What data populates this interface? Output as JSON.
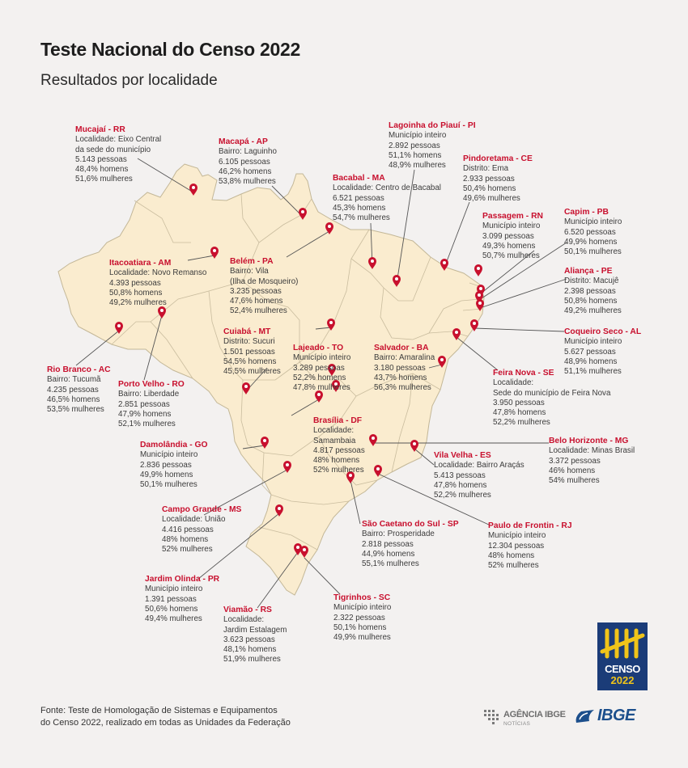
{
  "header": {
    "title": "Teste Nacional do Censo 2022",
    "subtitle": "Resultados por localidade"
  },
  "colors": {
    "land": "#faeccf",
    "border": "#c8bc9f",
    "pin": "#c8102e",
    "leader": "#555555",
    "background": "#f3f1f0"
  },
  "icons": {
    "pin": "map-pin-icon"
  },
  "locations": [
    {
      "name": "Mucajaí - RR",
      "lines": [
        "Localidade: Eixo Central",
        "da sede do município",
        "5.143 pessoas",
        "48,4% homens",
        "51,6% mulheres"
      ]
    },
    {
      "name": "Macapá - AP",
      "lines": [
        "Bairro: Laguinho",
        "6.105 pessoas",
        "46,2% homens",
        "53,8% mulheres"
      ]
    },
    {
      "name": "Lagoinha do Piauí - PI",
      "lines": [
        "Município inteiro",
        "2.892 pessoas",
        "51,1% homens",
        "48,9% mulheres"
      ]
    },
    {
      "name": "Pindoretama - CE",
      "lines": [
        "Distrito: Ema",
        "2.933 pessoas",
        "50,4% homens",
        "49,6% mulheres"
      ]
    },
    {
      "name": "Bacabal - MA",
      "lines": [
        "Localidade: Centro de Bacabal",
        "6.521 pessoas",
        "45,3% homens",
        "54,7% mulheres"
      ]
    },
    {
      "name": "Passagem - RN",
      "lines": [
        "Município inteiro",
        "3.099 pessoas",
        "49,3% homens",
        "50,7% mulheres"
      ]
    },
    {
      "name": "Capim - PB",
      "lines": [
        "Município inteiro",
        "6.520 pessoas",
        "49,9% homens",
        "50,1% mulheres"
      ]
    },
    {
      "name": "Itacoatiara - AM",
      "lines": [
        "Localidade: Novo Remanso",
        "4.393 pessoas",
        "50,8% homens",
        "49,2% mulheres"
      ]
    },
    {
      "name": "Belém - PA",
      "lines": [
        "Bairro: Vila",
        "(Ilha de Mosqueiro)",
        "3.235 pessoas",
        "47,6% homens",
        "52,4% mulheres"
      ]
    },
    {
      "name": "Aliança - PE",
      "lines": [
        "Distrito: Macujê",
        "2.398 pessoas",
        "50,8% homens",
        "49,2% mulheres"
      ]
    },
    {
      "name": "Coqueiro Seco - AL",
      "lines": [
        "Município inteiro",
        "5.627 pessoas",
        "48,9% homens",
        "51,1% mulheres"
      ]
    },
    {
      "name": "Cuiabá - MT",
      "lines": [
        "Distrito: Sucuri",
        "1.501 pessoas",
        "54,5% homens",
        "45,5% mulheres"
      ]
    },
    {
      "name": "Lajeado - TO",
      "lines": [
        "Município inteiro",
        "3.289 pessoas",
        "52,2% homens",
        "47,8% mulheres"
      ]
    },
    {
      "name": "Salvador - BA",
      "lines": [
        "Bairro: Amaralina",
        "3.180 pessoas",
        "43,7% homens",
        "56,3% mulheres"
      ]
    },
    {
      "name": "Rio Branco - AC",
      "lines": [
        "Bairro: Tucumã",
        "4.235 pessoas",
        "46,5% homens",
        "53,5% mulheres"
      ]
    },
    {
      "name": "Porto Velho - RO",
      "lines": [
        "Bairro: Liberdade",
        "2.851 pessoas",
        "47,9% homens",
        "52,1% mulheres"
      ]
    },
    {
      "name": "Feira Nova - SE",
      "lines": [
        "Localidade:",
        "Sede do município de Feira Nova",
        "3.950 pessoas",
        "47,8% homens",
        "52,2% mulheres"
      ]
    },
    {
      "name": "Brasília - DF",
      "lines": [
        "Localidade:",
        "Samambaia",
        "4.817 pessoas",
        "48% homens",
        "52% mulheres"
      ]
    },
    {
      "name": "Damolândia - GO",
      "lines": [
        "Município inteiro",
        "2.836 pessoas",
        "49,9% homens",
        "50,1% mulheres"
      ]
    },
    {
      "name": "Belo Horizonte - MG",
      "lines": [
        "Localidade: Minas Brasil",
        "3.372 pessoas",
        "46% homens",
        "54% mulheres"
      ]
    },
    {
      "name": "Vila Velha - ES",
      "lines": [
        "Localidade: Bairro Araçás",
        "5.413 pessoas",
        "47,8% homens",
        "52,2% mulheres"
      ]
    },
    {
      "name": "Campo Grande - MS",
      "lines": [
        "Localidade: União",
        "4.416 pessoas",
        "48% homens",
        "52% mulheres"
      ]
    },
    {
      "name": "São Caetano do Sul - SP",
      "lines": [
        "Bairro: Prosperidade",
        "2.818 pessoas",
        "44,9% homens",
        "55,1% mulheres"
      ]
    },
    {
      "name": "Paulo de Frontin - RJ",
      "lines": [
        "Município inteiro",
        "12.304 pessoas",
        "48% homens",
        "52% mulheres"
      ]
    },
    {
      "name": "Jardim Olinda - PR",
      "lines": [
        "Município inteiro",
        "1.391 pessoas",
        "50,6% homens",
        "49,4% mulheres"
      ]
    },
    {
      "name": "Viamão - RS",
      "lines": [
        "Localidade:",
        "Jardim Estalagem",
        "3.623 pessoas",
        "48,1% homens",
        "51,9% mulheres"
      ]
    },
    {
      "name": "Tigrinhos - SC",
      "lines": [
        "Município inteiro",
        "2.322 pessoas",
        "50,1% homens",
        "49,9% mulheres"
      ]
    }
  ],
  "footer": {
    "source_line1": "Fonte: Teste de Homologação de Sistemas e Equipamentos",
    "source_line2": "do Censo 2022, realizado em todas as Unidades da Federação",
    "agencia": "AGÊNCIA IBGE",
    "noticias": "NOTÍCIAS",
    "ibge": "IBGE",
    "censo_word": "CENSO",
    "censo_year": "2022"
  }
}
